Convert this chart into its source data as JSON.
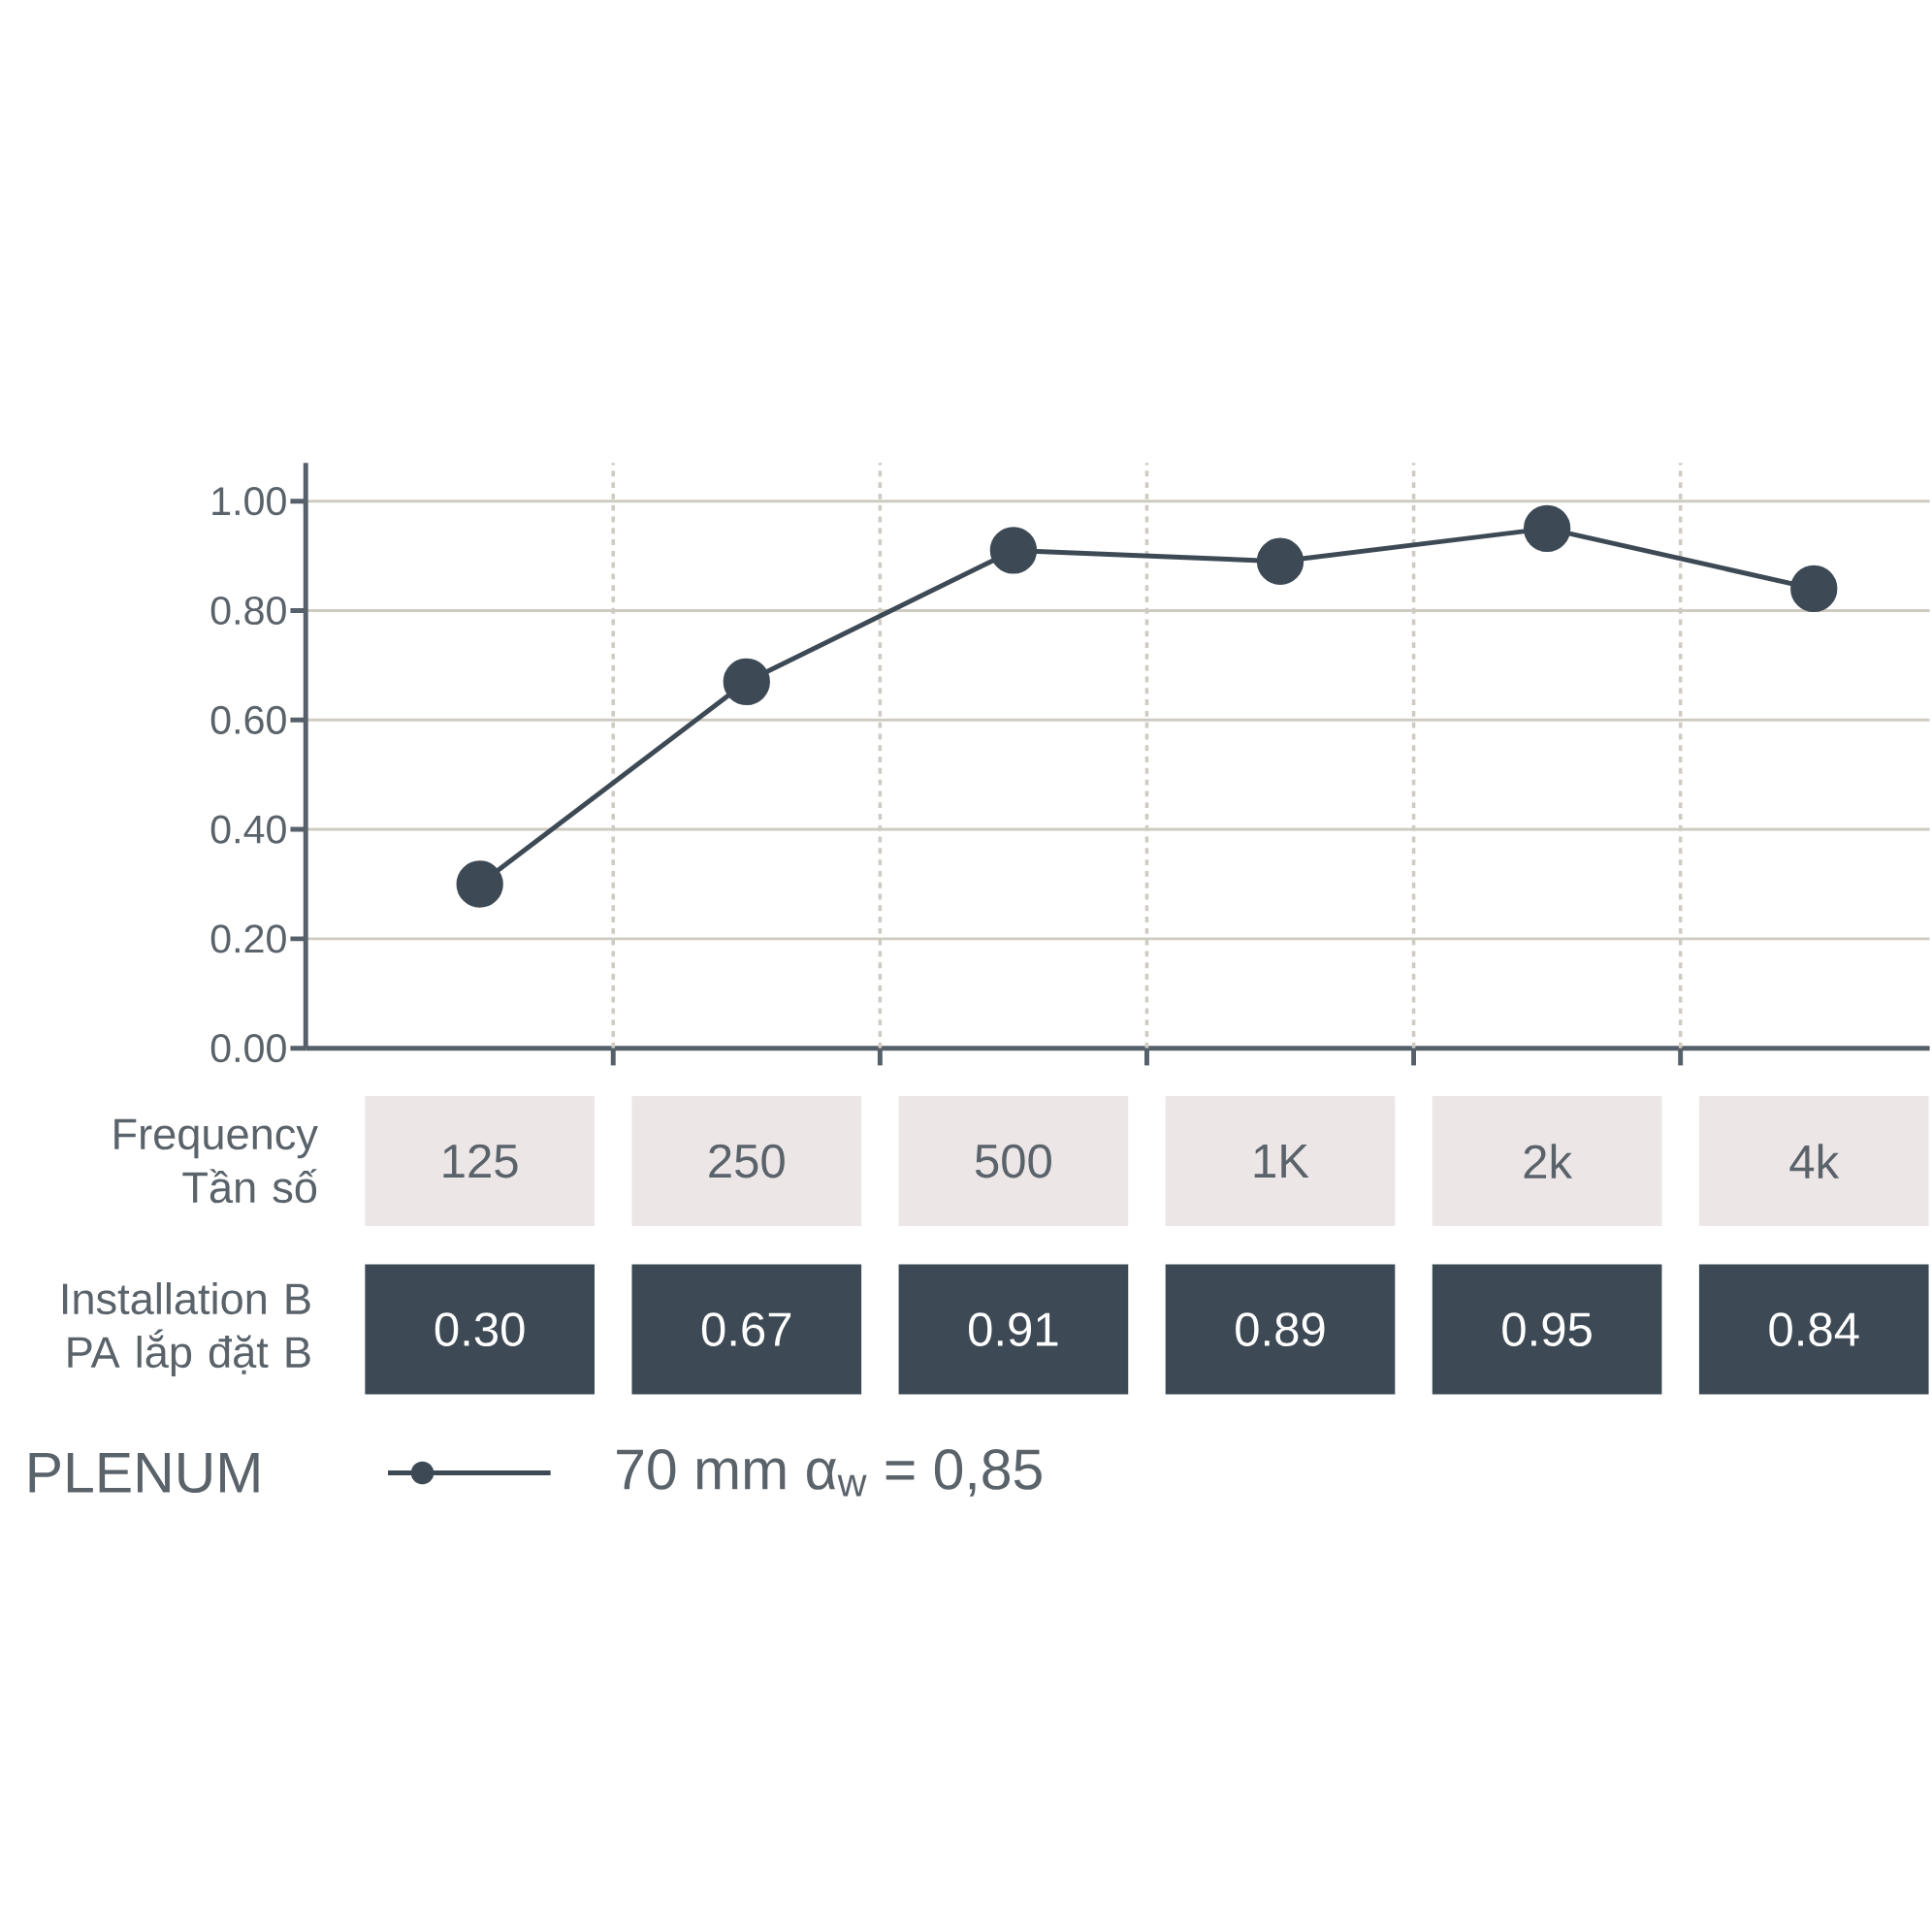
{
  "chart_data": {
    "type": "line",
    "categories": [
      "125",
      "250",
      "500",
      "1K",
      "2k",
      "4k"
    ],
    "series": [
      {
        "name": "70 mm  α$_{w}$ = 0,85",
        "color": "#3d4a55",
        "values": [
          0.3,
          0.67,
          0.91,
          0.89,
          0.95,
          0.84
        ],
        "value_labels": [
          "0.30",
          "0.67",
          "0.91",
          "0.89",
          "0.95",
          "0.84"
        ]
      }
    ],
    "legend_title": "PLENUM",
    "legend": "bottom",
    "marker": "circle",
    "line_style": "solid",
    "grid": "y",
    "annotations": [
      "Frequency Tần số",
      "Installation B PA lắp đặt B"
    ],
    "ylim": [
      0,
      1.07
    ],
    "yticks": [
      {
        "value": 0,
        "label": "0.00"
      },
      {
        "value": 0.2,
        "label": "0.20"
      },
      {
        "value": 0.4,
        "label": "0.40"
      },
      {
        "value": 0.6,
        "label": "0.60"
      },
      {
        "value": 0.8,
        "label": "0.80"
      },
      {
        "value": 1.0,
        "label": "1.00"
      }
    ]
  }
}
